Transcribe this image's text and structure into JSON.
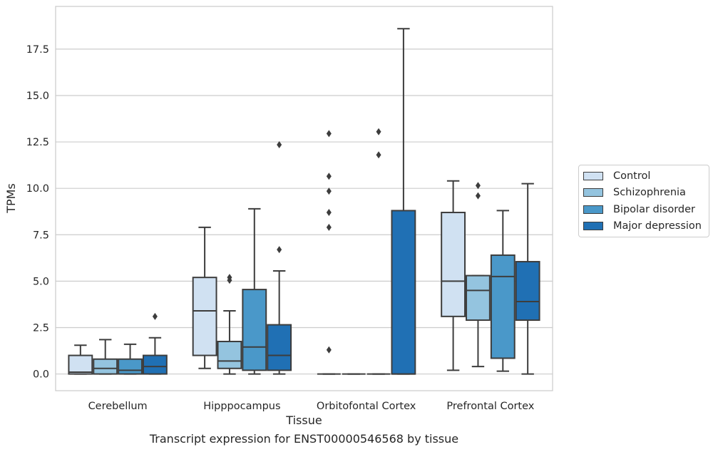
{
  "chart_data": {
    "type": "box",
    "title": "",
    "caption": "Transcript expression for ENST00000546568 by tissue",
    "xlabel": "Tissue",
    "ylabel": "TPMs",
    "ylim": [
      -0.9,
      19.8
    ],
    "yticks": [
      0.0,
      2.5,
      5.0,
      7.5,
      10.0,
      12.5,
      15.0,
      17.5
    ],
    "ytick_labels": [
      "0.0",
      "2.5",
      "5.0",
      "7.5",
      "10.0",
      "12.5",
      "15.0",
      "17.5"
    ],
    "grid": "horizontal",
    "legend_position": "right",
    "categories": [
      "Cerebellum",
      "Hipppocampus",
      "Orbitofontal Cortex",
      "Prefrontal Cortex"
    ],
    "series": [
      {
        "name": "Control",
        "color": "#d0e1f2",
        "boxes": [
          {
            "whislo": 0.0,
            "q1": 0.0,
            "med": 0.1,
            "q3": 1.0,
            "whishi": 1.55,
            "fliers": []
          },
          {
            "whislo": 0.3,
            "q1": 1.0,
            "med": 3.4,
            "q3": 5.2,
            "whishi": 7.9,
            "fliers": []
          },
          {
            "whislo": 0.0,
            "q1": 0.0,
            "med": 0.0,
            "q3": 0.0,
            "whishi": 0.0,
            "fliers": [
              7.9,
              8.7,
              9.85,
              10.65,
              12.95,
              1.3
            ]
          },
          {
            "whislo": 0.2,
            "q1": 3.1,
            "med": 5.0,
            "q3": 8.7,
            "whishi": 10.4,
            "fliers": []
          }
        ]
      },
      {
        "name": "Schizophrenia",
        "color": "#94c4df",
        "boxes": [
          {
            "whislo": 0.0,
            "q1": 0.0,
            "med": 0.3,
            "q3": 0.8,
            "whishi": 1.85,
            "fliers": []
          },
          {
            "whislo": 0.0,
            "q1": 0.3,
            "med": 0.7,
            "q3": 1.75,
            "whishi": 3.4,
            "fliers": [
              5.05,
              5.2
            ]
          },
          {
            "whislo": 0.0,
            "q1": 0.0,
            "med": 0.0,
            "q3": 0.0,
            "whishi": 0.0,
            "fliers": []
          },
          {
            "whislo": 0.4,
            "q1": 2.9,
            "med": 4.5,
            "q3": 5.3,
            "whishi": 5.3,
            "fliers": [
              9.6,
              10.15
            ]
          }
        ]
      },
      {
        "name": "Bipolar disorder",
        "color": "#4a98c9",
        "boxes": [
          {
            "whislo": 0.0,
            "q1": 0.0,
            "med": 0.2,
            "q3": 0.8,
            "whishi": 1.6,
            "fliers": []
          },
          {
            "whislo": 0.0,
            "q1": 0.2,
            "med": 1.45,
            "q3": 4.55,
            "whishi": 8.9,
            "fliers": []
          },
          {
            "whislo": 0.0,
            "q1": 0.0,
            "med": 0.0,
            "q3": 0.0,
            "whishi": 0.0,
            "fliers": [
              11.8,
              13.05
            ]
          },
          {
            "whislo": 0.15,
            "q1": 0.85,
            "med": 5.25,
            "q3": 6.4,
            "whishi": 8.8,
            "fliers": []
          }
        ]
      },
      {
        "name": "Major depression",
        "color": "#2070b4",
        "boxes": [
          {
            "whislo": 0.0,
            "q1": 0.0,
            "med": 0.4,
            "q3": 1.0,
            "whishi": 1.95,
            "fliers": [
              3.1
            ]
          },
          {
            "whislo": 0.0,
            "q1": 0.2,
            "med": 1.0,
            "q3": 2.65,
            "whishi": 5.55,
            "fliers": [
              6.7,
              12.35
            ]
          },
          {
            "whislo": 0.0,
            "q1": 0.0,
            "med": 0.0,
            "q3": 8.8,
            "whishi": 18.6,
            "fliers": []
          },
          {
            "whislo": 0.0,
            "q1": 2.9,
            "med": 3.9,
            "q3": 6.05,
            "whishi": 10.25,
            "fliers": []
          }
        ]
      }
    ]
  }
}
